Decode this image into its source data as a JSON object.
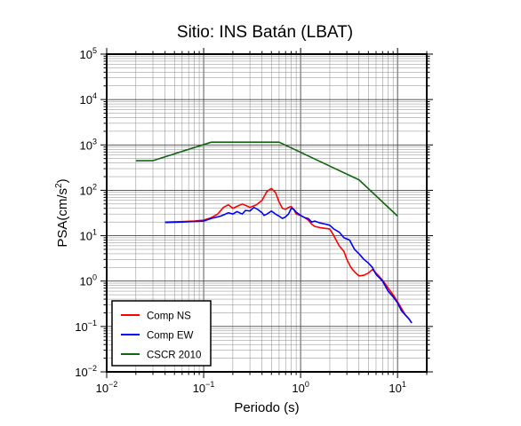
{
  "chart_data": {
    "type": "line",
    "title": "Sitio: INS Batán (LBAT)",
    "xlabel": "Periodo (s)",
    "ylabel_main": "PSA(cm/s",
    "ylabel_sup": "2",
    "ylabel_close": ")",
    "x_scale": "log",
    "y_scale": "log",
    "xlim": [
      0.01,
      20
    ],
    "ylim": [
      0.01,
      100000
    ],
    "grid": true,
    "legend_position": "bottom-left",
    "x_ticks": [
      {
        "base": "10",
        "exp": "−2",
        "value": 0.01
      },
      {
        "base": "10",
        "exp": "−1",
        "value": 0.1
      },
      {
        "base": "10",
        "exp": "0",
        "value": 1
      },
      {
        "base": "10",
        "exp": "1",
        "value": 10
      }
    ],
    "y_ticks": [
      {
        "base": "10",
        "exp": "−2",
        "value": 0.01
      },
      {
        "base": "10",
        "exp": "−1",
        "value": 0.1
      },
      {
        "base": "10",
        "exp": "0",
        "value": 1
      },
      {
        "base": "10",
        "exp": "1",
        "value": 10
      },
      {
        "base": "10",
        "exp": "2",
        "value": 100
      },
      {
        "base": "10",
        "exp": "3",
        "value": 1000
      },
      {
        "base": "10",
        "exp": "4",
        "value": 10000
      },
      {
        "base": "10",
        "exp": "5",
        "value": 100000
      }
    ],
    "series": [
      {
        "name": "Comp NS",
        "color": "#ff0000",
        "points": [
          [
            0.04,
            20
          ],
          [
            0.06,
            20.5
          ],
          [
            0.08,
            21
          ],
          [
            0.1,
            22
          ],
          [
            0.12,
            25
          ],
          [
            0.14,
            30
          ],
          [
            0.16,
            42
          ],
          [
            0.18,
            48
          ],
          [
            0.2,
            40
          ],
          [
            0.22,
            44
          ],
          [
            0.25,
            50
          ],
          [
            0.28,
            45
          ],
          [
            0.3,
            42
          ],
          [
            0.35,
            48
          ],
          [
            0.4,
            60
          ],
          [
            0.45,
            95
          ],
          [
            0.5,
            110
          ],
          [
            0.55,
            90
          ],
          [
            0.6,
            55
          ],
          [
            0.65,
            40
          ],
          [
            0.7,
            38
          ],
          [
            0.75,
            42
          ],
          [
            0.8,
            44
          ],
          [
            0.85,
            38
          ],
          [
            0.9,
            30
          ],
          [
            1.0,
            28
          ],
          [
            1.1,
            25
          ],
          [
            1.2,
            22
          ],
          [
            1.3,
            18
          ],
          [
            1.4,
            16
          ],
          [
            1.6,
            15
          ],
          [
            1.8,
            14.5
          ],
          [
            2.0,
            14
          ],
          [
            2.2,
            10
          ],
          [
            2.5,
            6
          ],
          [
            2.8,
            4.5
          ],
          [
            3.0,
            3.0
          ],
          [
            3.3,
            2.0
          ],
          [
            3.6,
            1.6
          ],
          [
            4.0,
            1.3
          ],
          [
            4.5,
            1.35
          ],
          [
            5.0,
            1.5
          ],
          [
            5.5,
            1.8
          ],
          [
            6.0,
            1.5
          ],
          [
            7.0,
            1.05
          ],
          [
            8.0,
            0.7
          ],
          [
            9.0,
            0.5
          ],
          [
            10.0,
            0.35
          ],
          [
            11.0,
            0.25
          ],
          [
            12.0,
            0.18
          ],
          [
            13.0,
            0.15
          ],
          [
            14.0,
            0.12
          ]
        ]
      },
      {
        "name": "Comp EW",
        "color": "#0000ff",
        "points": [
          [
            0.04,
            19.5
          ],
          [
            0.06,
            20
          ],
          [
            0.08,
            20.5
          ],
          [
            0.1,
            21
          ],
          [
            0.12,
            24
          ],
          [
            0.15,
            27
          ],
          [
            0.18,
            32
          ],
          [
            0.2,
            30
          ],
          [
            0.22,
            34
          ],
          [
            0.25,
            30
          ],
          [
            0.27,
            36
          ],
          [
            0.3,
            35
          ],
          [
            0.33,
            42
          ],
          [
            0.36,
            38
          ],
          [
            0.4,
            32
          ],
          [
            0.42,
            28
          ],
          [
            0.45,
            30
          ],
          [
            0.5,
            35
          ],
          [
            0.55,
            30
          ],
          [
            0.6,
            27
          ],
          [
            0.65,
            24
          ],
          [
            0.7,
            26
          ],
          [
            0.75,
            30
          ],
          [
            0.8,
            40
          ],
          [
            0.85,
            38
          ],
          [
            0.9,
            33
          ],
          [
            1.0,
            28
          ],
          [
            1.1,
            25
          ],
          [
            1.2,
            24
          ],
          [
            1.3,
            20
          ],
          [
            1.4,
            21
          ],
          [
            1.6,
            19
          ],
          [
            1.8,
            18
          ],
          [
            2.0,
            17
          ],
          [
            2.2,
            14
          ],
          [
            2.5,
            12
          ],
          [
            2.8,
            9
          ],
          [
            3.2,
            8
          ],
          [
            3.6,
            5
          ],
          [
            4.0,
            4
          ],
          [
            4.5,
            3
          ],
          [
            5.0,
            2.5
          ],
          [
            5.5,
            2.0
          ],
          [
            6.0,
            1.4
          ],
          [
            7.0,
            1.0
          ],
          [
            8.0,
            0.6
          ],
          [
            9.0,
            0.45
          ],
          [
            10.0,
            0.33
          ],
          [
            11.0,
            0.22
          ],
          [
            12.0,
            0.18
          ],
          [
            13.0,
            0.15
          ],
          [
            14.0,
            0.12
          ]
        ]
      },
      {
        "name": "CSCR 2010",
        "color": "#116611",
        "points": [
          [
            0.02,
            450
          ],
          [
            0.03,
            450
          ],
          [
            0.12,
            1150
          ],
          [
            0.6,
            1150
          ],
          [
            4.0,
            170
          ],
          [
            10.0,
            27
          ]
        ]
      }
    ]
  }
}
